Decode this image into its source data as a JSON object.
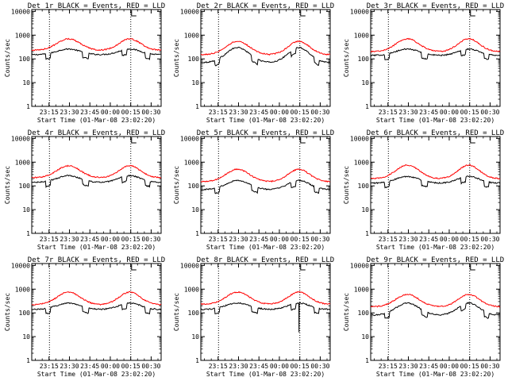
{
  "layout": {
    "columns": 3,
    "rows": 3
  },
  "colors": {
    "events": "#000000",
    "lld": "#ff0000",
    "axes": "#000000",
    "background": "#ffffff"
  },
  "shared": {
    "ylabel": "Counts/sec",
    "xlabel": "Start Time (01-Mar-08 23:02:20)",
    "y_ticks": [
      1,
      10,
      100,
      1000,
      10000
    ],
    "y_tick_labels": [
      "1",
      "10",
      "100",
      "1000",
      "10000"
    ],
    "y_scale": "log",
    "ylim": [
      1,
      12000
    ],
    "x_ticks": [
      "23:15",
      "23:30",
      "23:45",
      "00:00",
      "00:15",
      "00:30"
    ],
    "x_tick_minutes": [
      12.67,
      27.67,
      42.67,
      57.67,
      72.67,
      87.67
    ],
    "xlim_minutes": [
      0,
      95
    ],
    "vlines_minutes": [
      13,
      72.7
    ],
    "flag_label": "E",
    "flag_minute": 73.3
  },
  "chart_data": [
    {
      "type": "line",
      "title": "Det 1r BLACK = Events, RED = LLD",
      "series": [
        {
          "name": "Events",
          "color": "#000000",
          "base": 150,
          "peak": 260,
          "steps": true
        },
        {
          "name": "LLD",
          "color": "#ff0000",
          "base": 230,
          "peak": 700,
          "steps": false
        }
      ]
    },
    {
      "type": "line",
      "title": "Det 2r BLACK = Events, RED = LLD",
      "series": [
        {
          "name": "Events",
          "color": "#000000",
          "base": 70,
          "peak": 300,
          "steps": true
        },
        {
          "name": "LLD",
          "color": "#ff0000",
          "base": 150,
          "peak": 550,
          "steps": false
        }
      ]
    },
    {
      "type": "line",
      "title": "Det 3r BLACK = Events, RED = LLD",
      "series": [
        {
          "name": "Events",
          "color": "#000000",
          "base": 140,
          "peak": 260,
          "steps": true
        },
        {
          "name": "LLD",
          "color": "#ff0000",
          "base": 200,
          "peak": 700,
          "steps": false
        }
      ]
    },
    {
      "type": "line",
      "title": "Det 4r BLACK = Events, RED = LLD",
      "series": [
        {
          "name": "Events",
          "color": "#000000",
          "base": 140,
          "peak": 270,
          "steps": true
        },
        {
          "name": "LLD",
          "color": "#ff0000",
          "base": 220,
          "peak": 700,
          "steps": false
        }
      ]
    },
    {
      "type": "line",
      "title": "Det 5r BLACK = Events, RED = LLD",
      "series": [
        {
          "name": "Events",
          "color": "#000000",
          "base": 70,
          "peak": 170,
          "steps": true
        },
        {
          "name": "LLD",
          "color": "#ff0000",
          "base": 150,
          "peak": 500,
          "steps": false
        }
      ]
    },
    {
      "type": "line",
      "title": "Det 6r BLACK = Events, RED = LLD",
      "series": [
        {
          "name": "Events",
          "color": "#000000",
          "base": 130,
          "peak": 250,
          "steps": true
        },
        {
          "name": "LLD",
          "color": "#ff0000",
          "base": 200,
          "peak": 750,
          "steps": false
        }
      ]
    },
    {
      "type": "line",
      "title": "Det 7r BLACK = Events, RED = LLD",
      "series": [
        {
          "name": "Events",
          "color": "#000000",
          "base": 140,
          "peak": 260,
          "steps": true
        },
        {
          "name": "LLD",
          "color": "#ff0000",
          "base": 220,
          "peak": 750,
          "steps": false
        }
      ]
    },
    {
      "type": "line",
      "title": "Det 8r BLACK = Events, RED = LLD",
      "series": [
        {
          "name": "Events",
          "color": "#000000",
          "base": 140,
          "peak": 260,
          "steps": true,
          "dropout_minute": 72,
          "dropout_value": 15
        },
        {
          "name": "LLD",
          "color": "#ff0000",
          "base": 230,
          "peak": 750,
          "steps": false
        }
      ]
    },
    {
      "type": "line",
      "title": "Det 9r BLACK = Events, RED = LLD",
      "series": [
        {
          "name": "Events",
          "color": "#000000",
          "base": 80,
          "peak": 260,
          "steps": true
        },
        {
          "name": "LLD",
          "color": "#ff0000",
          "base": 180,
          "peak": 600,
          "steps": false
        }
      ]
    }
  ]
}
